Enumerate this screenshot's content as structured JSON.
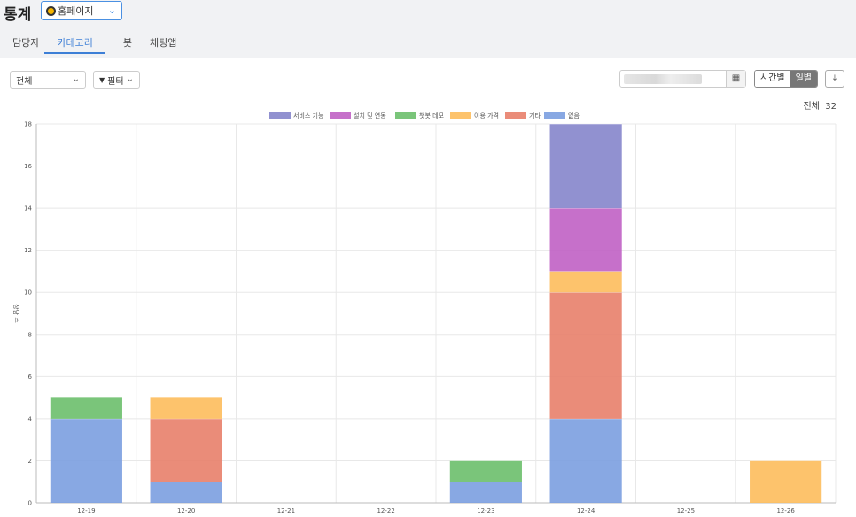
{
  "page": {
    "title": "통계",
    "site_select": "홈페이지"
  },
  "tabs": [
    "담당자",
    "카테고리",
    "봇",
    "채팅앱"
  ],
  "filters": {
    "scope": "전체",
    "filter": "필터"
  },
  "date_icon": "calendar-icon",
  "toggle": {
    "hourly": "시간별",
    "daily": "일별"
  },
  "total": {
    "label": "전체",
    "value": "32"
  },
  "chart_data": {
    "type": "bar",
    "stacked": true,
    "categories": [
      "12-19",
      "12-20",
      "12-21",
      "12-22",
      "12-23",
      "12-24",
      "12-25",
      "12-26"
    ],
    "ylabel": "상담 수",
    "ylim": [
      0,
      18
    ],
    "yticks": [
      0,
      2,
      4,
      6,
      8,
      10,
      12,
      14,
      16,
      18
    ],
    "grid": true,
    "legend_position": "top-center",
    "series": [
      {
        "name": "없음",
        "color": "#7b9fe0",
        "values": [
          4,
          1,
          0,
          0,
          1,
          4,
          0,
          0
        ]
      },
      {
        "name": "기타",
        "color": "#e8806a",
        "values": [
          0,
          3,
          0,
          0,
          0,
          6,
          0,
          0
        ]
      },
      {
        "name": "이용 가격",
        "color": "#fdbd5c",
        "values": [
          0,
          1,
          0,
          0,
          0,
          1,
          0,
          2
        ]
      },
      {
        "name": "챗봇 데모",
        "color": "#6bbf6b",
        "values": [
          1,
          0,
          0,
          0,
          1,
          0,
          0,
          0
        ]
      },
      {
        "name": "설치 및 연동",
        "color": "#c060c4",
        "values": [
          0,
          0,
          0,
          0,
          0,
          3,
          0,
          0
        ]
      },
      {
        "name": "서비스 기능",
        "color": "#8585cb",
        "values": [
          0,
          0,
          0,
          0,
          0,
          4,
          0,
          0
        ]
      }
    ],
    "legend_order": [
      "서비스 기능",
      "설치 및 연동",
      "챗봇 데모",
      "이용 가격",
      "기타",
      "없음"
    ]
  }
}
